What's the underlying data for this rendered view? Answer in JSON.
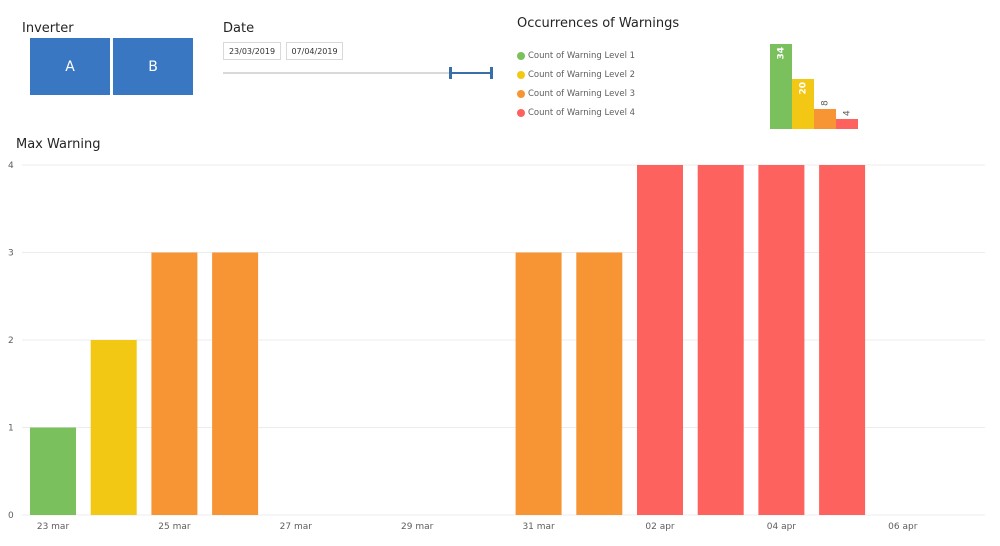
{
  "inverter": {
    "title": "Inverter",
    "buttons": [
      "A",
      "B"
    ]
  },
  "date": {
    "title": "Date",
    "start": "23/03/2019",
    "end": "07/04/2019"
  },
  "occurrences": {
    "title": "Occurrences of Warnings",
    "legend": [
      {
        "label": "Count of Warning Level 1",
        "color": "#7ac15d"
      },
      {
        "label": "Count of Warning Level 2",
        "color": "#f2c814"
      },
      {
        "label": "Count of Warning Level 3",
        "color": "#f79535"
      },
      {
        "label": "Count of Warning Level 4",
        "color": "#fd625e"
      }
    ]
  },
  "max_warning": {
    "title": "Max Warning"
  },
  "chart_data": [
    {
      "type": "bar",
      "title": "Occurrences of Warnings",
      "categories": [
        "Count of Warning Level 1",
        "Count of Warning Level 2",
        "Count of Warning Level 3",
        "Count of Warning Level 4"
      ],
      "values": [
        34,
        20,
        8,
        4
      ],
      "colors": [
        "#7ac15d",
        "#f2c814",
        "#f79535",
        "#fd625e"
      ],
      "data_labels": true,
      "legend": "left"
    },
    {
      "type": "bar",
      "title": "Max Warning",
      "x": [
        "23 mar",
        "24 mar",
        "25 mar",
        "26 mar",
        "31 mar",
        "01 apr",
        "02 apr",
        "03 apr",
        "04 apr",
        "05 apr"
      ],
      "values": [
        1,
        2,
        3,
        3,
        3,
        3,
        4,
        4,
        4,
        4
      ],
      "xlim": [
        "23 mar",
        "06 apr"
      ],
      "x_ticks": [
        "23 mar",
        "25 mar",
        "27 mar",
        "29 mar",
        "31 mar",
        "02 apr",
        "04 apr",
        "06 apr"
      ],
      "ylim": [
        0,
        4
      ],
      "y_ticks": [
        0,
        1,
        2,
        3,
        4
      ],
      "level_colors": {
        "1": "#7ac15d",
        "2": "#f2c814",
        "3": "#f79535",
        "4": "#fd625e"
      },
      "grid": true
    }
  ]
}
